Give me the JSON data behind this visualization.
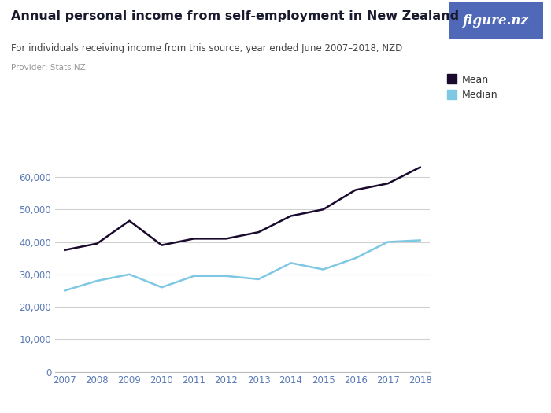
{
  "title": "Annual personal income from self-employment in New Zealand",
  "subtitle": "For individuals receiving income from this source, year ended June 2007–2018, NZD",
  "provider": "Provider: Stats NZ",
  "years": [
    2007,
    2008,
    2009,
    2010,
    2011,
    2012,
    2013,
    2014,
    2015,
    2016,
    2017,
    2018
  ],
  "mean": [
    37500,
    39500,
    46500,
    39000,
    41000,
    41000,
    43000,
    48000,
    50000,
    56000,
    58000,
    63000
  ],
  "median": [
    25000,
    28000,
    30000,
    26000,
    29500,
    29500,
    28500,
    33500,
    31500,
    35000,
    40000,
    40500
  ],
  "mean_color": "#1a0a2e",
  "median_color": "#7ec8e3",
  "background_color": "#ffffff",
  "plot_bg_color": "#ffffff",
  "grid_color": "#d0d0d0",
  "title_color": "#1a1a2e",
  "subtitle_color": "#444444",
  "provider_color": "#999999",
  "tick_color": "#5a7ab5",
  "ylim": [
    0,
    70000
  ],
  "yticks": [
    0,
    10000,
    20000,
    30000,
    40000,
    50000,
    60000
  ],
  "ytick_labels": [
    "0",
    "10,000",
    "20,000",
    "30,000",
    "40,000",
    "50,000",
    "60,000"
  ],
  "logo_bg_color": "#5068b8",
  "logo_text": "figure.nz",
  "logo_text_color": "#ffffff",
  "legend_labels": [
    "Mean",
    "Median"
  ]
}
